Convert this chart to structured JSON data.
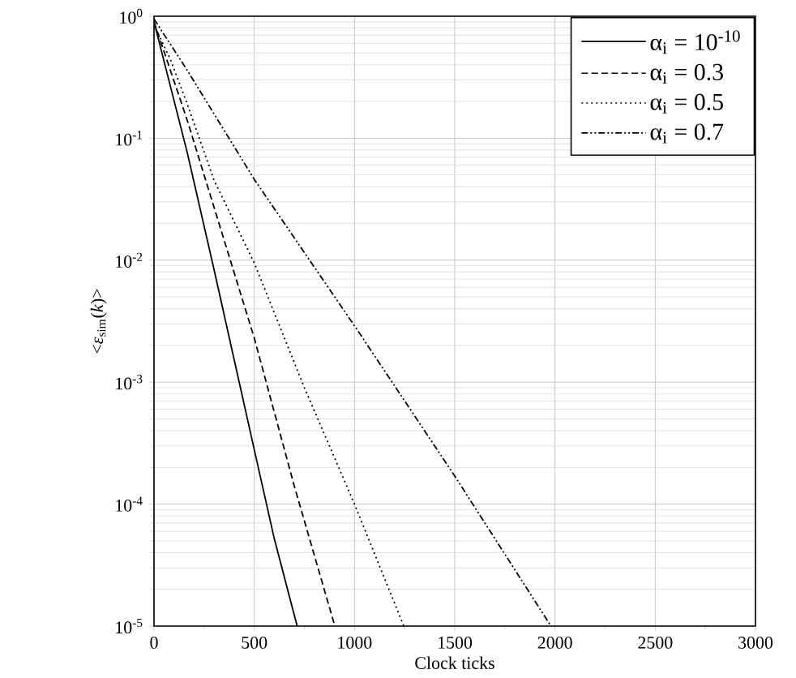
{
  "chart_data": {
    "type": "line",
    "xlabel": "Clock ticks",
    "ylabel": "<*ε*$_{sim}$(*k*)>",
    "log": "y",
    "grid": true,
    "legend": "top right",
    "xlim": [
      0,
      3000
    ],
    "xticks": [
      0,
      500,
      1000,
      1500,
      2000,
      2500,
      3000
    ],
    "ylim": [
      1e-05,
      1
    ],
    "yticks": [
      {
        "value": 1e-05,
        "label": "10$^{-5}$"
      },
      {
        "value": 0.0001,
        "label": "10$^{-4}$"
      },
      {
        "value": 0.001,
        "label": "10$^{-3}$"
      },
      {
        "value": 0.01,
        "label": "10$^{-2}$"
      },
      {
        "value": 0.1,
        "label": "10$^{-1}$"
      },
      {
        "value": 1,
        "label": "10$^{0}$"
      }
    ],
    "series": [
      {
        "name": "α$_{i}$ = 10$^{-10}$",
        "color": "#000000",
        "line_style": "solid",
        "x": [
          0,
          166,
          300,
          500,
          600,
          714
        ],
        "values": [
          0.9,
          0.076,
          0.0083,
          0.00028,
          5.2e-05,
          1e-05
        ]
      },
      {
        "name": "α$_{i}$ = 0.3",
        "color": "#000000",
        "line_style": "dashed",
        "x": [
          0,
          166,
          500,
          700,
          902
        ],
        "values": [
          0.9,
          0.14,
          0.0023,
          0.00014,
          1e-05
        ]
      },
      {
        "name": "α$_{i}$ = 0.5",
        "color": "#000000",
        "line_style": "dotted",
        "x": [
          0,
          80,
          166,
          300,
          500,
          750,
          1000,
          1246
        ],
        "values": [
          0.85,
          0.45,
          0.19,
          0.045,
          0.0095,
          0.0009,
          0.0001,
          1e-05
        ]
      },
      {
        "name": "α$_{i}$ = 0.7",
        "color": "#000000",
        "line_style": "dashdot",
        "x": [
          0,
          166,
          500,
          1000,
          1500,
          1980
        ],
        "values": [
          0.95,
          0.36,
          0.046,
          0.0029,
          0.00017,
          1e-05
        ]
      }
    ]
  }
}
